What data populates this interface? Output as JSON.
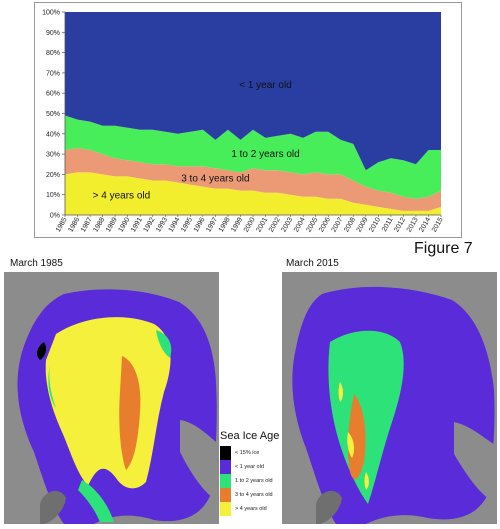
{
  "figure_label": "Figure 7",
  "chart_data": {
    "type": "area",
    "stacked": true,
    "percent": true,
    "x": [
      "1985",
      "1986",
      "1987",
      "1988",
      "1989",
      "1990",
      "1991",
      "1992",
      "1993",
      "1994",
      "1995",
      "1996",
      "1997",
      "1998",
      "1999",
      "2000",
      "2001",
      "2002",
      "2003",
      "2004",
      "2005",
      "2006",
      "2007",
      "2008",
      "2009",
      "2010",
      "2011",
      "2012",
      "2013",
      "2014",
      "2015"
    ],
    "ylim": [
      0,
      100
    ],
    "yticks": [
      "0%",
      "10%",
      "20%",
      "30%",
      "40%",
      "50%",
      "60%",
      "70%",
      "80%",
      "90%",
      "100%"
    ],
    "series": [
      {
        "name": "> 4 years old",
        "color": "#f2ee2e",
        "values": [
          20,
          21,
          21,
          20,
          19,
          19,
          18,
          17,
          17,
          16,
          15,
          14,
          13,
          13,
          12,
          12,
          11,
          11,
          10,
          9,
          9,
          8,
          8,
          6,
          5,
          4,
          3,
          2,
          2,
          2,
          4
        ]
      },
      {
        "name": "3 to 4 years old",
        "color": "#ec9a76",
        "values": [
          12,
          12,
          11,
          10,
          9,
          8,
          8,
          8,
          8,
          8,
          9,
          10,
          10,
          9,
          9,
          11,
          11,
          11,
          11,
          11,
          12,
          12,
          12,
          11,
          9,
          8,
          8,
          7,
          6,
          7,
          8
        ]
      },
      {
        "name": "1 to 2 years old",
        "color": "#47ee59",
        "values": [
          17,
          14,
          14,
          14,
          16,
          16,
          16,
          17,
          16,
          16,
          17,
          18,
          14,
          20,
          16,
          19,
          16,
          17,
          19,
          18,
          20,
          21,
          17,
          18,
          8,
          14,
          17,
          18,
          17,
          23,
          20
        ]
      },
      {
        "name": "< 1 year old",
        "color": "#2a3ea2",
        "values": [
          51,
          53,
          54,
          56,
          56,
          57,
          58,
          58,
          59,
          60,
          59,
          58,
          63,
          58,
          63,
          58,
          62,
          61,
          60,
          62,
          59,
          59,
          63,
          65,
          78,
          74,
          72,
          73,
          75,
          68,
          68
        ]
      }
    ]
  },
  "maps": {
    "left_title": "March 1985",
    "right_title": "March 2015"
  },
  "legend": {
    "title": "Sea Ice Age",
    "items": [
      {
        "label": "< 15% ice",
        "color": "#000000"
      },
      {
        "label": "< 1 year old",
        "color": "#5a2bd8"
      },
      {
        "label": "1 to 2 years old",
        "color": "#2ee27a"
      },
      {
        "label": "3 to 4 years old",
        "color": "#e87d2e"
      },
      {
        "label": "> 4 years old",
        "color": "#f4f03c"
      }
    ]
  }
}
